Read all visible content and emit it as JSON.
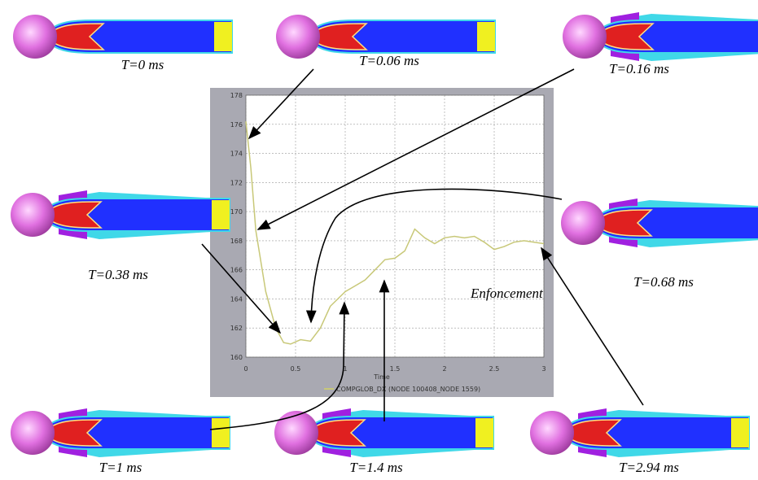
{
  "chart_data": {
    "type": "line",
    "x": [
      0,
      0.05,
      0.1,
      0.2,
      0.3,
      0.38,
      0.45,
      0.55,
      0.65,
      0.75,
      0.85,
      1,
      1.1,
      1.2,
      1.3,
      1.4,
      1.5,
      1.6,
      1.7,
      1.8,
      1.9,
      2,
      2.1,
      2.2,
      2.3,
      2.4,
      2.5,
      2.6,
      2.7,
      2.8,
      3
    ],
    "series": [
      {
        "name": "COMPGLOB_DX (NODE 100408_NODE 1559)",
        "color": "#c8c878",
        "values": [
          176.2,
          173,
          168.7,
          164.5,
          162,
          161,
          160.9,
          161.2,
          161.1,
          162,
          163.5,
          164.5,
          164.9,
          165.3,
          166,
          166.7,
          166.8,
          167.3,
          168.8,
          168.2,
          167.8,
          168.2,
          168.3,
          168.2,
          168.3,
          167.9,
          167.4,
          167.6,
          167.9,
          168,
          167.8
        ]
      }
    ],
    "xlabel": "Time",
    "xlim": [
      0,
      3
    ],
    "xticks": [
      0,
      0.5,
      1,
      1.5,
      2,
      2.5,
      3
    ],
    "ylim": [
      160,
      178
    ],
    "yticks": [
      160,
      162,
      164,
      166,
      168,
      170,
      172,
      174,
      176,
      178
    ],
    "grid": true,
    "annotation": "Enfoncement"
  },
  "snapshots": [
    {
      "label": "T=0 ms"
    },
    {
      "label": "T=0.06 ms"
    },
    {
      "label": "T=0.16 ms"
    },
    {
      "label": "T=0.38 ms"
    },
    {
      "label": "T=0.68 ms"
    },
    {
      "label": "T=1 ms"
    },
    {
      "label": "T=1.4 ms"
    },
    {
      "label": "T=2.94 ms"
    }
  ]
}
